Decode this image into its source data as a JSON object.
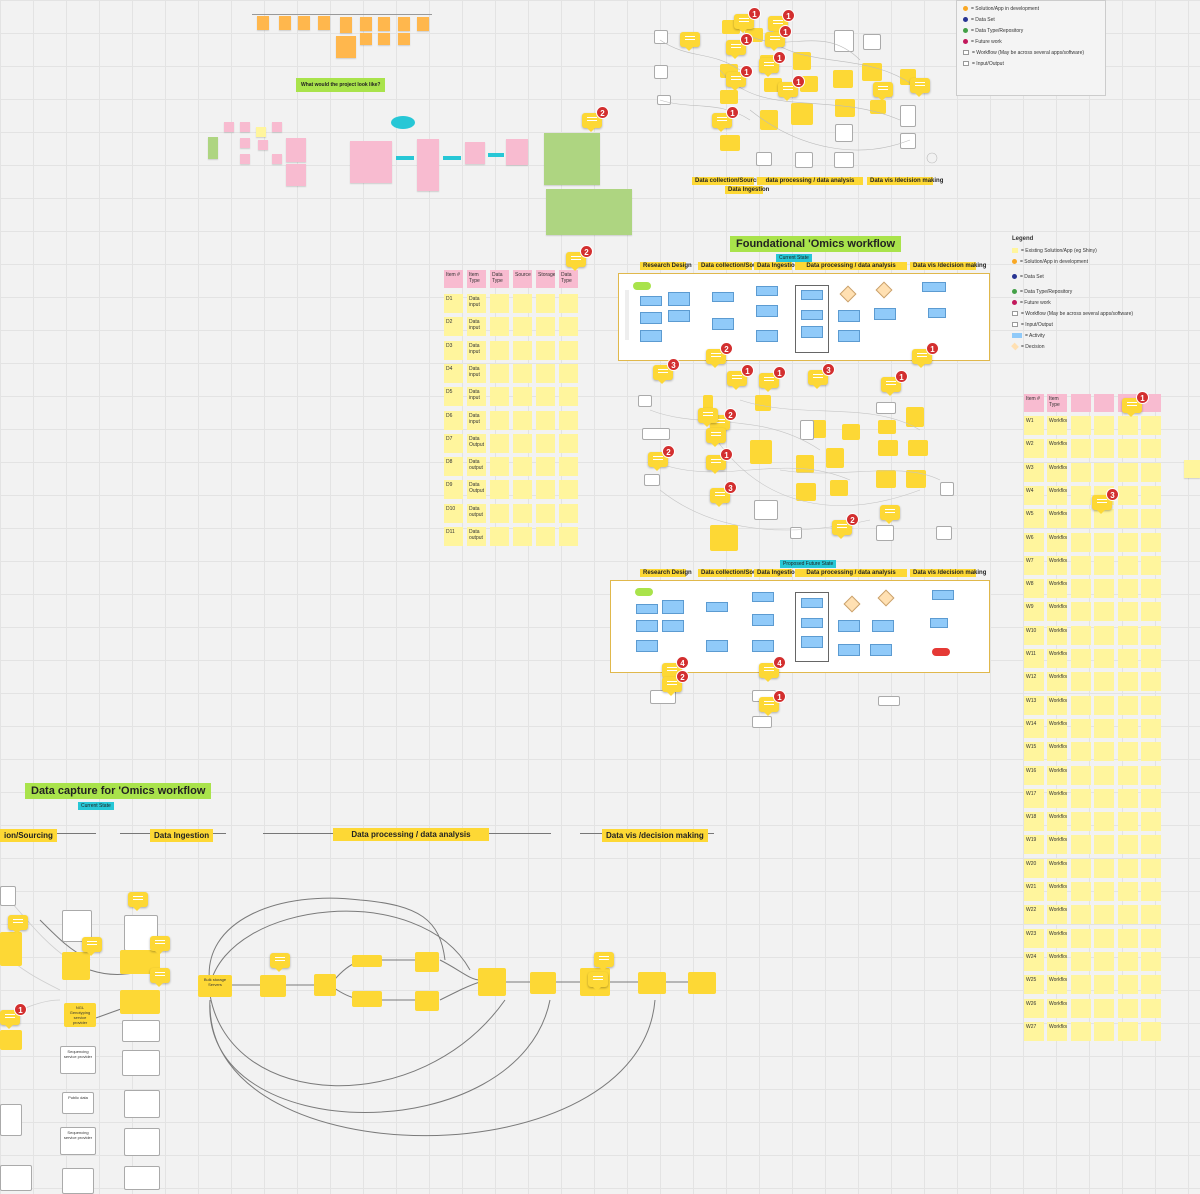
{
  "board": {
    "question_label": "What would the project look like?"
  },
  "top_phases": {
    "collection": "Data collection/Sourcing",
    "processing": "data processing / data analysis",
    "vis": "Data vis /decision making",
    "ingestion": "Data Ingestion"
  },
  "legend_top": {
    "rows": [
      "= Solution/App in development",
      "= Data Set",
      "= Data Type/Repository",
      "= Future work",
      "= Workflow (May be across several apps/software)",
      "= Input/Output"
    ]
  },
  "foundational": {
    "title": "Foundational 'Omics workflow",
    "current_tag": "Current State",
    "future_tag": "Proposed Future State",
    "phases": {
      "research": "Research Design",
      "collection": "Data collection/Sourcing",
      "ingestion": "Data Ingestion",
      "processing": "Data processing / data analysis",
      "vis": "Data vis /decision making"
    }
  },
  "legend_main": {
    "title": "Legend",
    "rows": [
      "= Existing Solution/App (eg Shiny)",
      "= Solution/App in development",
      "= Data Set",
      "= Data Type/Repository",
      "= Future work",
      "= Workflow (May be across several apps/software)",
      "= Input/Output",
      "= Activity",
      "= Decision"
    ]
  },
  "left_table": {
    "headers": [
      "Item #",
      "Item Type",
      "Data Type",
      "Source",
      "Storage",
      "Data Type"
    ],
    "rows": [
      {
        "id": "D1",
        "type": "Data input"
      },
      {
        "id": "D2",
        "type": "Data input"
      },
      {
        "id": "D3",
        "type": "Data input"
      },
      {
        "id": "D4",
        "type": "Data input"
      },
      {
        "id": "D5",
        "type": "Data input"
      },
      {
        "id": "D6",
        "type": "Data input"
      },
      {
        "id": "D7",
        "type": "Data Output"
      },
      {
        "id": "D8",
        "type": "Data output"
      },
      {
        "id": "D9",
        "type": "Data Output"
      },
      {
        "id": "D10",
        "type": "Data output"
      },
      {
        "id": "D11",
        "type": "Data output"
      }
    ]
  },
  "right_table": {
    "headers": [
      "Item #",
      "Item Type"
    ],
    "rows": [
      {
        "id": "W1",
        "type": "Workflow"
      },
      {
        "id": "W2",
        "type": "Workflow"
      },
      {
        "id": "W3",
        "type": "Workflow"
      },
      {
        "id": "W4",
        "type": "Workflow"
      },
      {
        "id": "W5",
        "type": "Workflow"
      },
      {
        "id": "W6",
        "type": "Workflow"
      },
      {
        "id": "W7",
        "type": "Workflow"
      },
      {
        "id": "W8",
        "type": "Workflow"
      },
      {
        "id": "W9",
        "type": "Workflow"
      },
      {
        "id": "W10",
        "type": "Workflow"
      },
      {
        "id": "W11",
        "type": "Workflow"
      },
      {
        "id": "W12",
        "type": "Workflow"
      },
      {
        "id": "W13",
        "type": "Workflow"
      },
      {
        "id": "W14",
        "type": "Workflow"
      },
      {
        "id": "W15",
        "type": "Workflow"
      },
      {
        "id": "W16",
        "type": "Workflow"
      },
      {
        "id": "W17",
        "type": "Workflow"
      },
      {
        "id": "W18",
        "type": "Workflow"
      },
      {
        "id": "W19",
        "type": "Workflow"
      },
      {
        "id": "W20",
        "type": "Workflow"
      },
      {
        "id": "W21",
        "type": "Workflow"
      },
      {
        "id": "W22",
        "type": "Workflow"
      },
      {
        "id": "W23",
        "type": "Workflow"
      },
      {
        "id": "W24",
        "type": "Workflow"
      },
      {
        "id": "W25",
        "type": "Workflow"
      },
      {
        "id": "W26",
        "type": "Workflow"
      },
      {
        "id": "W27",
        "type": "Workflow"
      }
    ]
  },
  "data_capture": {
    "title": "Data capture for 'Omics workflow",
    "current_tag": "Current State",
    "phases": {
      "sourcing": "ion/Sourcing",
      "ingestion": "Data Ingestion",
      "processing": "Data processing / data analysis",
      "vis": "Data vis /decision making"
    },
    "nodes": {
      "bulk": "Bulk storage Servers",
      "public": "Public data",
      "seq1": "Sequencing service provider",
      "seq2": "Sequencing service provider",
      "seq3": "Sequencing service provider",
      "ngl": "NGL Genotyping service provider"
    }
  },
  "comment_badges": {
    "c1": "1",
    "c2": "1",
    "c3": "1",
    "c4": "1",
    "c5": "1",
    "c6": "1",
    "c7": "1",
    "c8": "1",
    "c9": "2",
    "c10": "2",
    "c11": "3",
    "c12": "2",
    "c13": "1",
    "c14": "1",
    "c15": "3",
    "c16": "1",
    "c17": "1",
    "c18": "2",
    "c19": "1",
    "c20": "3",
    "c21": "2",
    "c22": "2",
    "c23": "1",
    "c24": "3",
    "c25": "4",
    "c26": "2",
    "c27": "4",
    "c28": "1",
    "c29": "1"
  },
  "colors": {
    "sticky_yellow": "#fff59d",
    "phase_yellow": "#fdd835",
    "title_green": "#a9e34b",
    "tag_teal": "#27c7d6",
    "badge_red": "#d32f2f",
    "activity_blue": "#90caf9"
  }
}
